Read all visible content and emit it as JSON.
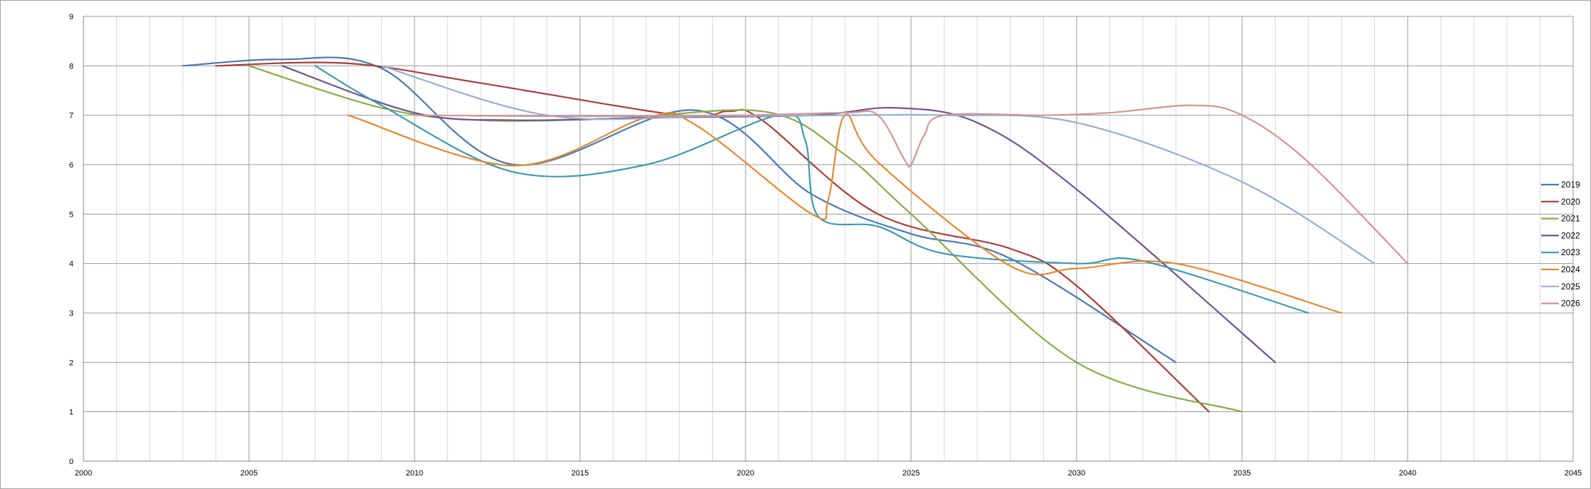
{
  "chart_data": {
    "type": "line",
    "title": "",
    "xlabel": "",
    "ylabel": "",
    "xlim": [
      2000,
      2045
    ],
    "ylim": [
      0,
      9
    ],
    "x_ticks": [
      2000,
      2005,
      2010,
      2015,
      2020,
      2025,
      2030,
      2035,
      2040,
      2045
    ],
    "x_tick_labels": [
      "2000",
      "2005",
      "2010",
      "2015",
      "2020",
      "2025",
      "2030",
      "2035",
      "2040",
      "2045"
    ],
    "y_ticks": [
      0,
      1,
      2,
      3,
      4,
      5,
      6,
      7,
      8,
      9
    ],
    "y_tick_labels": [
      "0",
      "1",
      "2",
      "3",
      "4",
      "5",
      "6",
      "7",
      "8",
      "9"
    ],
    "grid": true,
    "smooth": true,
    "legend_position": "right",
    "series": [
      {
        "name": "2019",
        "color": "#4a7ab0",
        "points": [
          [
            2003,
            8
          ],
          [
            2006,
            8.13
          ],
          [
            2009,
            7.95
          ],
          [
            2013,
            6
          ],
          [
            2018.5,
            7.1
          ],
          [
            2022,
            5.4
          ],
          [
            2025,
            4.6
          ],
          [
            2028,
            4.1
          ],
          [
            2033,
            2
          ]
        ]
      },
      {
        "name": "2020",
        "color": "#a6403d",
        "points": [
          [
            2004,
            8
          ],
          [
            2008,
            8.05
          ],
          [
            2012,
            7.65
          ],
          [
            2018,
            7
          ],
          [
            2019.5,
            7.08
          ],
          [
            2020.5,
            6.9
          ],
          [
            2024,
            5
          ],
          [
            2028,
            4.3
          ],
          [
            2030,
            3.55
          ],
          [
            2034,
            1
          ]
        ]
      },
      {
        "name": "2021",
        "color": "#8aab4a",
        "points": [
          [
            2005,
            8
          ],
          [
            2009,
            7.15
          ],
          [
            2012,
            6.9
          ],
          [
            2016,
            6.93
          ],
          [
            2020.6,
            7.07
          ],
          [
            2023,
            6.2
          ],
          [
            2025,
            5
          ],
          [
            2030,
            2
          ],
          [
            2035,
            1
          ]
        ]
      },
      {
        "name": "2022",
        "color": "#6f5590",
        "points": [
          [
            2006,
            8
          ],
          [
            2010,
            7.05
          ],
          [
            2013,
            6.9
          ],
          [
            2017,
            6.95
          ],
          [
            2022,
            7
          ],
          [
            2024.5,
            7.15
          ],
          [
            2027,
            6.85
          ],
          [
            2030,
            5.5
          ],
          [
            2036,
            2
          ]
        ]
      },
      {
        "name": "2023",
        "color": "#3f99ad",
        "points": [
          [
            2007,
            8
          ],
          [
            2009,
            7.2
          ],
          [
            2013,
            5.85
          ],
          [
            2017,
            6
          ],
          [
            2021,
            7
          ],
          [
            2021.8,
            6.5
          ],
          [
            2022.2,
            4.95
          ],
          [
            2024,
            4.75
          ],
          [
            2026,
            4.2
          ],
          [
            2030,
            4
          ],
          [
            2032,
            4.05
          ],
          [
            2037,
            3
          ]
        ]
      },
      {
        "name": "2024",
        "color": "#e08a37",
        "points": [
          [
            2008,
            7
          ],
          [
            2013,
            5.98
          ],
          [
            2017,
            6.95
          ],
          [
            2018.5,
            6.8
          ],
          [
            2022,
            5
          ],
          [
            2022.5,
            5.3
          ],
          [
            2023,
            7
          ],
          [
            2024,
            6.05
          ],
          [
            2028,
            3.95
          ],
          [
            2030,
            3.9
          ],
          [
            2033,
            4
          ],
          [
            2038,
            3
          ]
        ]
      },
      {
        "name": "2025",
        "color": "#94afd2",
        "points": [
          [
            2009,
            8
          ],
          [
            2014,
            7
          ],
          [
            2019,
            6.98
          ],
          [
            2023,
            7
          ],
          [
            2026,
            7
          ],
          [
            2030,
            6.85
          ],
          [
            2035,
            5.65
          ],
          [
            2039,
            4
          ]
        ]
      },
      {
        "name": "2026",
        "color": "#d19595",
        "points": [
          [
            2010,
            7
          ],
          [
            2015,
            6.98
          ],
          [
            2020,
            7
          ],
          [
            2023,
            7.05
          ],
          [
            2024,
            7
          ],
          [
            2024.8,
            6.1
          ],
          [
            2025,
            6
          ],
          [
            2025.4,
            6.6
          ],
          [
            2026,
            7
          ],
          [
            2029,
            7
          ],
          [
            2031,
            7.05
          ],
          [
            2033.5,
            7.2
          ],
          [
            2035,
            7
          ],
          [
            2037,
            6.05
          ],
          [
            2040,
            4
          ]
        ]
      }
    ]
  }
}
